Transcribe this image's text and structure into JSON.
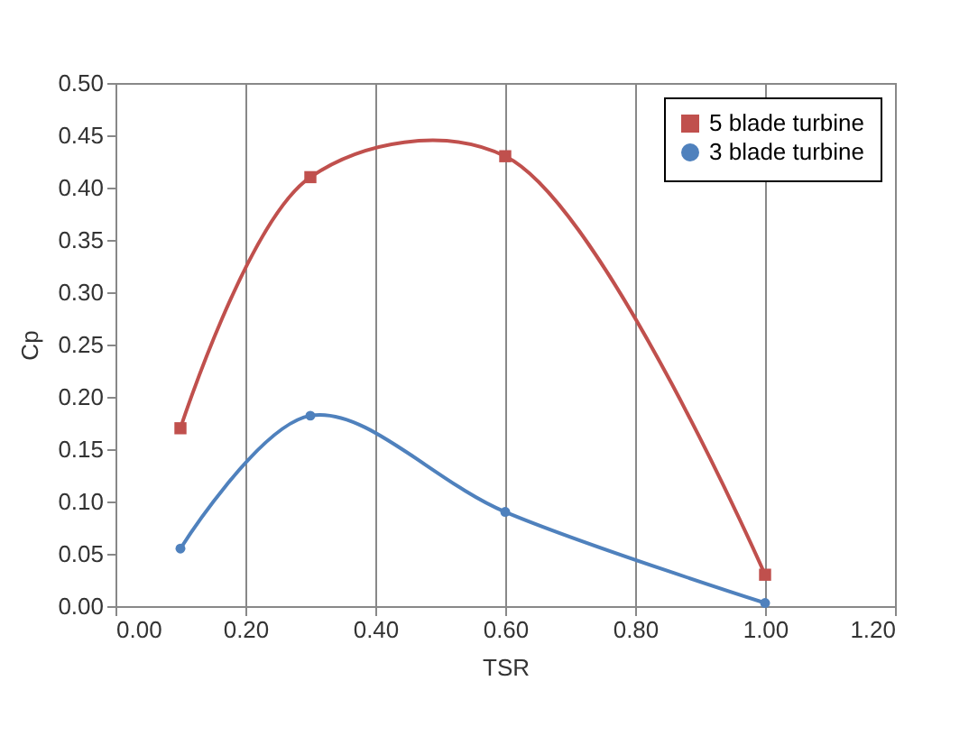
{
  "chart_data": {
    "type": "line",
    "xlabel": "TSR",
    "ylabel": "Cp",
    "xlim": [
      0,
      1.2
    ],
    "xticks": [
      {
        "value": 0,
        "label": "0.00"
      },
      {
        "value": 0.2,
        "label": "0.20"
      },
      {
        "value": 0.4,
        "label": "0.40"
      },
      {
        "value": 0.6,
        "label": "0.60"
      },
      {
        "value": 0.8,
        "label": "0.80"
      },
      {
        "value": 1,
        "label": "1.00"
      },
      {
        "value": 1.2,
        "label": "1.20"
      }
    ],
    "ylim": [
      0,
      0.5
    ],
    "yticks": [
      {
        "value": 0,
        "label": "0.00"
      },
      {
        "value": 0.05,
        "label": "0.05"
      },
      {
        "value": 0.1,
        "label": "0.10"
      },
      {
        "value": 0.15,
        "label": "0.15"
      },
      {
        "value": 0.2,
        "label": "0.20"
      },
      {
        "value": 0.25,
        "label": "0.25"
      },
      {
        "value": 0.3,
        "label": "0.30"
      },
      {
        "value": 0.35,
        "label": "0.35"
      },
      {
        "value": 0.4,
        "label": "0.40"
      },
      {
        "value": 0.45,
        "label": "0.45"
      },
      {
        "value": 0.5,
        "label": "0.50"
      }
    ],
    "grid": "x",
    "legend": "top right",
    "series": [
      {
        "name": "5 blade turbine",
        "color": "#c0504d",
        "marker": "square",
        "x": [
          0.1,
          0.3,
          0.6,
          1.0
        ],
        "values": [
          0.17,
          0.41,
          0.43,
          0.03
        ]
      },
      {
        "name": "3 blade turbine",
        "color": "#4f81bd",
        "marker": "circle",
        "x": [
          0.1,
          0.3,
          0.6,
          1.0
        ],
        "values": [
          0.055,
          0.182,
          0.09,
          0.003
        ]
      }
    ]
  }
}
